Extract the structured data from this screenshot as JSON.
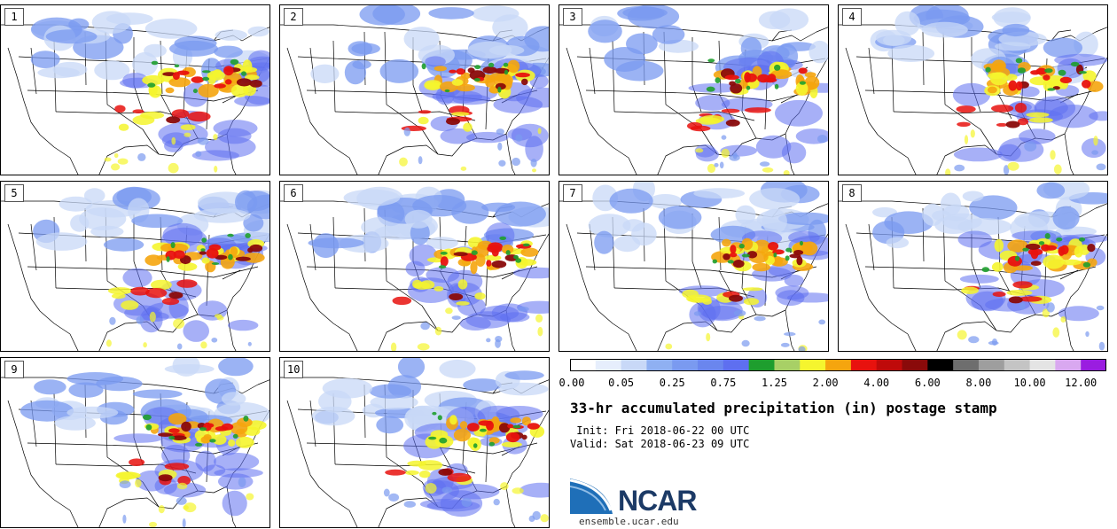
{
  "panels": [
    {
      "label": "1"
    },
    {
      "label": "2"
    },
    {
      "label": "3"
    },
    {
      "label": "4"
    },
    {
      "label": "5"
    },
    {
      "label": "6"
    },
    {
      "label": "7"
    },
    {
      "label": "8"
    },
    {
      "label": "9"
    },
    {
      "label": "10"
    }
  ],
  "colorbar": {
    "colors": [
      "#ffffff",
      "#e6eefc",
      "#c8d8f7",
      "#8fb0f2",
      "#7a9af0",
      "#6a86ee",
      "#5e6ff0",
      "#1e9e2e",
      "#a8d066",
      "#f5f52e",
      "#f5a50e",
      "#e8120e",
      "#bf0a0a",
      "#8a0a0a",
      "#000000",
      "#6e6e6e",
      "#9e9e9e",
      "#c4c4c4",
      "#e4e4e4",
      "#d9a8f0",
      "#9a1de0"
    ],
    "ticks": [
      {
        "label": "0.00",
        "bin": 0
      },
      {
        "label": "0.05",
        "bin": 2
      },
      {
        "label": "0.25",
        "bin": 4
      },
      {
        "label": "0.75",
        "bin": 6
      },
      {
        "label": "1.25",
        "bin": 8
      },
      {
        "label": "2.00",
        "bin": 10
      },
      {
        "label": "4.00",
        "bin": 12
      },
      {
        "label": "6.00",
        "bin": 14
      },
      {
        "label": "8.00",
        "bin": 16
      },
      {
        "label": "10.00",
        "bin": 18
      },
      {
        "label": "12.00",
        "bin": 20
      }
    ]
  },
  "title": "33-hr accumulated precipitation (in) postage stamp",
  "init": " Init: Fri 2018-06-22 00 UTC",
  "valid": "Valid: Sat 2018-06-23 09 UTC",
  "logo": {
    "text": "NCAR",
    "url": "ensemble.ucar.edu"
  },
  "map_colors": {
    "light": "#c8d8f7",
    "mid": "#7a9af0",
    "blue": "#5e6ff0",
    "green": "#1e9e2e",
    "yellow": "#f5f52e",
    "orange": "#f5a50e",
    "red": "#e8120e",
    "darkred": "#8a0a0a"
  }
}
